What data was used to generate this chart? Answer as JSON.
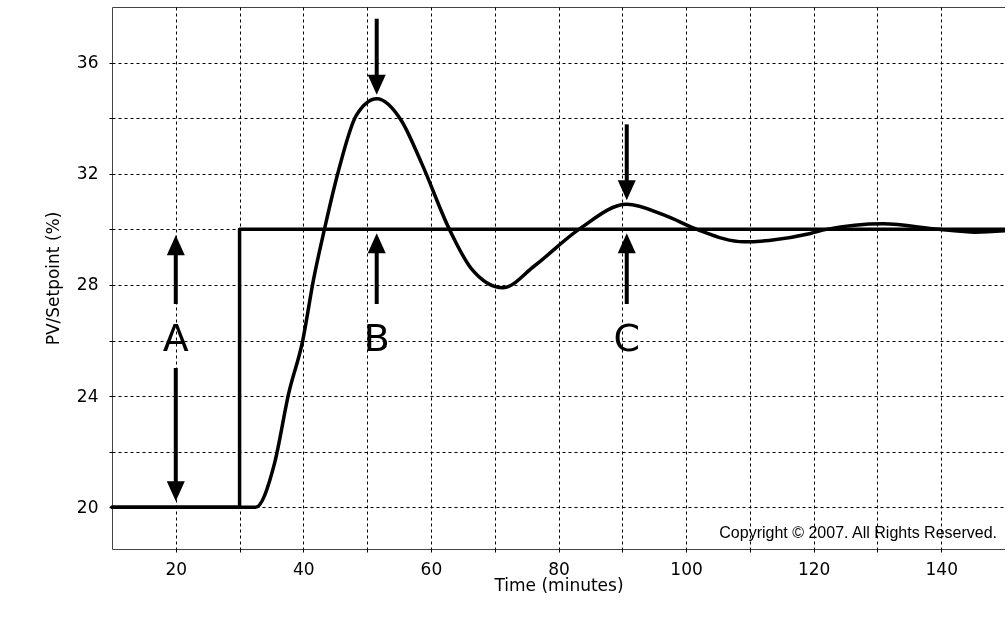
{
  "chart_data": {
    "type": "line",
    "xlabel": "Time (minutes)",
    "ylabel": "PV/Setpoint  (%)",
    "xlim": [
      10,
      150
    ],
    "ylim": [
      18.5,
      38
    ],
    "xticks": [
      20,
      {
        "value": 30,
        "label": null
      },
      40,
      {
        "value": 50,
        "label": null
      },
      60,
      {
        "value": 70,
        "label": null
      },
      80,
      {
        "value": 90,
        "label": null
      },
      100,
      {
        "value": 110,
        "label": null
      },
      120,
      {
        "value": 130,
        "label": null
      },
      140
    ],
    "yticks": [
      20,
      {
        "value": 22,
        "label": null
      },
      24,
      {
        "value": 26,
        "label": null
      },
      28,
      {
        "value": 30,
        "label": null
      },
      32,
      {
        "value": 34,
        "label": null
      },
      36
    ],
    "grid": true,
    "legend": false,
    "series": [
      {
        "color": "#000000",
        "x": [
          10,
          30,
          30,
          150
        ],
        "values": [
          20,
          20,
          30,
          30
        ]
      },
      {
        "color": "#000000",
        "x": [
          10,
          32.5,
          35.5,
          37.7,
          39.9,
          41.6,
          43.3,
          45.5,
          48.3,
          51.5,
          55.4,
          58.5,
          62.9,
          66.3,
          71.3,
          76.3,
          83.2,
          90.7,
          96.7,
          101.7,
          109.1,
          113,
          119.5,
          122,
          130.9,
          139.6,
          145.3,
          150
        ],
        "values": [
          20,
          20,
          21.6,
          24.1,
          26,
          28.2,
          30,
          32.1,
          34.1,
          34.7,
          33.9,
          32.4,
          30,
          28.6,
          27.9,
          28.7,
          30,
          30.9,
          30.5,
          30,
          29.55,
          29.6,
          29.85,
          30,
          30.2,
          30,
          29.9,
          29.95
        ]
      }
    ],
    "annotations": [
      "A",
      "B",
      "C",
      "Copyright © 2007. All Rights Reserved."
    ]
  }
}
